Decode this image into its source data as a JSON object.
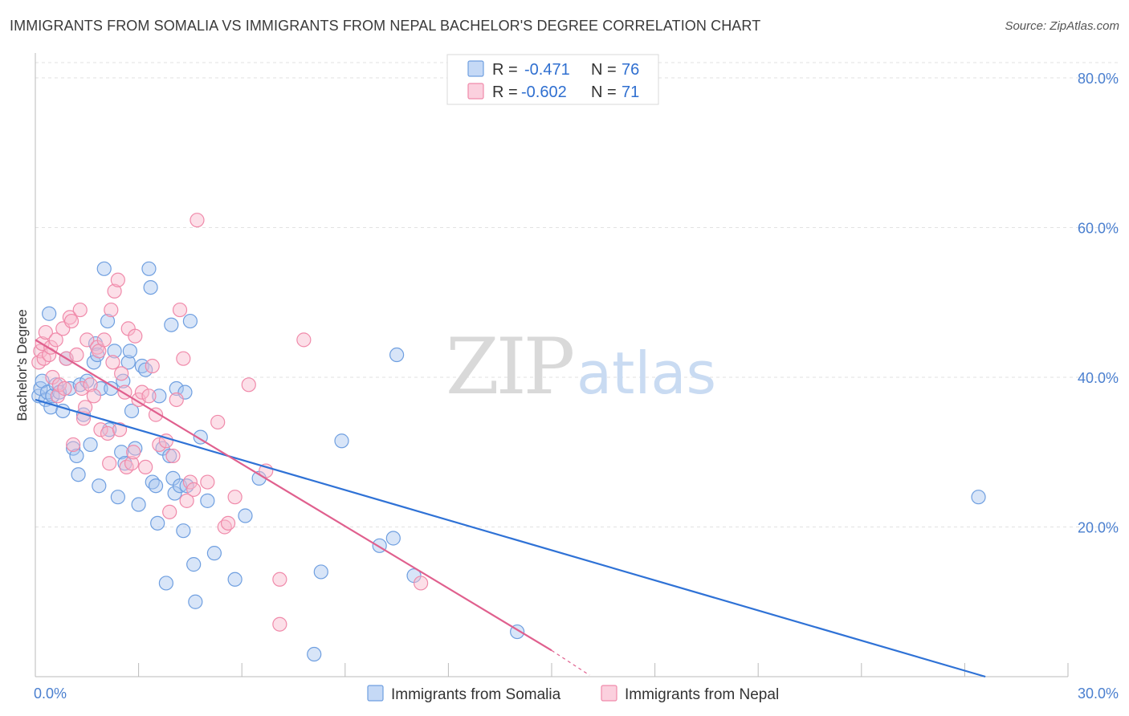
{
  "title": "IMMIGRANTS FROM SOMALIA VS IMMIGRANTS FROM NEPAL BACHELOR'S DEGREE CORRELATION CHART",
  "source": "Source: ZipAtlas.com",
  "watermark": {
    "zip": "ZIP",
    "atlas": "atlas"
  },
  "legend": {
    "somalia": {
      "r_label": "R =",
      "r_value": "-0.471",
      "n_label": "N =",
      "n_value": "76",
      "color": "#6f9fe0"
    },
    "nepal": {
      "r_label": "R =",
      "r_value": "-0.602",
      "n_label": "N =",
      "n_value": "71",
      "color": "#f08aaa"
    }
  },
  "chart_data": {
    "type": "scatter",
    "title": "IMMIGRANTS FROM SOMALIA VS IMMIGRANTS FROM NEPAL BACHELOR'S DEGREE CORRELATION CHART",
    "xlabel": "",
    "ylabel": "Bachelor's Degree",
    "xlim": [
      0,
      30
    ],
    "ylim": [
      0,
      80
    ],
    "x_tick_labels": [
      "0.0%",
      "30.0%"
    ],
    "y_tick_labels": [
      "80.0%",
      "60.0%",
      "40.0%",
      "20.0%"
    ],
    "y_ticks": [
      80,
      60,
      40,
      20
    ],
    "series": [
      {
        "name": "Immigrants from Somalia",
        "color": "#6f9fe0",
        "line_color": "#2f72d6",
        "trend": {
          "x": [
            0,
            27.6
          ],
          "y": [
            37.0,
            0.0
          ]
        },
        "points": [
          [
            0.1,
            37.5
          ],
          [
            0.15,
            38.5
          ],
          [
            0.2,
            39.5
          ],
          [
            0.3,
            37
          ],
          [
            0.35,
            38
          ],
          [
            0.4,
            48.5
          ],
          [
            0.45,
            36
          ],
          [
            0.5,
            37.5
          ],
          [
            0.6,
            39
          ],
          [
            0.7,
            38
          ],
          [
            0.8,
            35.5
          ],
          [
            0.9,
            42.5
          ],
          [
            1.0,
            38.5
          ],
          [
            1.1,
            30.5
          ],
          [
            1.2,
            29.5
          ],
          [
            1.25,
            27
          ],
          [
            1.3,
            39
          ],
          [
            1.4,
            35
          ],
          [
            1.5,
            39.5
          ],
          [
            1.6,
            31
          ],
          [
            1.7,
            42
          ],
          [
            1.75,
            44.5
          ],
          [
            1.8,
            43
          ],
          [
            1.85,
            25.5
          ],
          [
            1.9,
            38.5
          ],
          [
            2.0,
            54.5
          ],
          [
            2.1,
            47.5
          ],
          [
            2.15,
            33
          ],
          [
            2.2,
            38.5
          ],
          [
            2.3,
            43.5
          ],
          [
            2.4,
            24
          ],
          [
            2.5,
            30
          ],
          [
            2.55,
            39.5
          ],
          [
            2.6,
            28.5
          ],
          [
            2.7,
            42
          ],
          [
            2.75,
            43.5
          ],
          [
            2.8,
            35.5
          ],
          [
            2.9,
            30.5
          ],
          [
            3.0,
            23
          ],
          [
            3.1,
            41.5
          ],
          [
            3.2,
            41
          ],
          [
            3.3,
            54.5
          ],
          [
            3.35,
            52
          ],
          [
            3.4,
            26
          ],
          [
            3.5,
            25.5
          ],
          [
            3.55,
            20.5
          ],
          [
            3.6,
            37.5
          ],
          [
            3.7,
            30.5
          ],
          [
            3.8,
            12.5
          ],
          [
            3.9,
            29.5
          ],
          [
            3.95,
            47
          ],
          [
            4.0,
            26.5
          ],
          [
            4.05,
            24.5
          ],
          [
            4.1,
            38.5
          ],
          [
            4.2,
            25.5
          ],
          [
            4.3,
            19.5
          ],
          [
            4.35,
            38
          ],
          [
            4.4,
            25.5
          ],
          [
            4.5,
            47.5
          ],
          [
            4.6,
            15
          ],
          [
            4.65,
            10
          ],
          [
            4.8,
            32
          ],
          [
            5.0,
            23.5
          ],
          [
            5.2,
            16.5
          ],
          [
            5.8,
            13
          ],
          [
            6.1,
            21.5
          ],
          [
            6.5,
            26.5
          ],
          [
            8.1,
            3
          ],
          [
            8.3,
            14
          ],
          [
            8.9,
            31.5
          ],
          [
            10.0,
            17.5
          ],
          [
            10.4,
            18.5
          ],
          [
            10.5,
            43
          ],
          [
            11.0,
            13.5
          ],
          [
            14.0,
            6
          ],
          [
            27.4,
            24
          ]
        ]
      },
      {
        "name": "Immigrants from Nepal",
        "color": "#f08aaa",
        "line_color": "#e0608e",
        "trend": {
          "x": [
            0,
            15.0
          ],
          "y": [
            45.0,
            3.5
          ]
        },
        "trend_dashed": {
          "x": [
            15.0,
            16.1
          ],
          "y": [
            3.5,
            0.2
          ]
        },
        "points": [
          [
            0.1,
            42
          ],
          [
            0.15,
            43.5
          ],
          [
            0.2,
            44.5
          ],
          [
            0.25,
            42.5
          ],
          [
            0.3,
            46
          ],
          [
            0.4,
            43
          ],
          [
            0.45,
            44
          ],
          [
            0.5,
            40
          ],
          [
            0.6,
            45
          ],
          [
            0.65,
            37.5
          ],
          [
            0.7,
            39
          ],
          [
            0.8,
            46.5
          ],
          [
            0.85,
            38.5
          ],
          [
            0.9,
            42.5
          ],
          [
            1.0,
            48
          ],
          [
            1.05,
            47.5
          ],
          [
            1.1,
            31
          ],
          [
            1.2,
            43
          ],
          [
            1.3,
            49
          ],
          [
            1.35,
            38.5
          ],
          [
            1.4,
            34.5
          ],
          [
            1.45,
            36
          ],
          [
            1.5,
            45
          ],
          [
            1.6,
            39
          ],
          [
            1.7,
            37.5
          ],
          [
            1.8,
            44
          ],
          [
            1.85,
            43.5
          ],
          [
            1.9,
            33
          ],
          [
            2.0,
            45
          ],
          [
            2.1,
            32.5
          ],
          [
            2.15,
            28.5
          ],
          [
            2.2,
            49
          ],
          [
            2.25,
            42
          ],
          [
            2.3,
            51.5
          ],
          [
            2.4,
            53
          ],
          [
            2.45,
            33
          ],
          [
            2.5,
            40.5
          ],
          [
            2.6,
            38
          ],
          [
            2.65,
            28
          ],
          [
            2.7,
            46.5
          ],
          [
            2.8,
            28.5
          ],
          [
            2.85,
            30
          ],
          [
            2.9,
            45.5
          ],
          [
            3.0,
            37
          ],
          [
            3.1,
            38
          ],
          [
            3.2,
            28
          ],
          [
            3.3,
            37.5
          ],
          [
            3.4,
            41.5
          ],
          [
            3.5,
            35
          ],
          [
            3.6,
            31
          ],
          [
            3.8,
            31.5
          ],
          [
            3.9,
            22
          ],
          [
            4.0,
            29.5
          ],
          [
            4.1,
            37
          ],
          [
            4.2,
            49
          ],
          [
            4.3,
            42.5
          ],
          [
            4.4,
            23.5
          ],
          [
            4.5,
            26
          ],
          [
            4.6,
            25
          ],
          [
            4.7,
            61
          ],
          [
            5.0,
            26
          ],
          [
            5.3,
            34
          ],
          [
            5.5,
            20
          ],
          [
            5.6,
            20.5
          ],
          [
            5.8,
            24
          ],
          [
            6.2,
            39
          ],
          [
            6.7,
            27.5
          ],
          [
            7.1,
            13
          ],
          [
            7.1,
            7
          ],
          [
            7.8,
            45
          ],
          [
            11.2,
            12.5
          ]
        ]
      }
    ]
  },
  "bottom_legend": {
    "somalia": "Immigrants from Somalia",
    "nepal": "Immigrants from Nepal"
  }
}
